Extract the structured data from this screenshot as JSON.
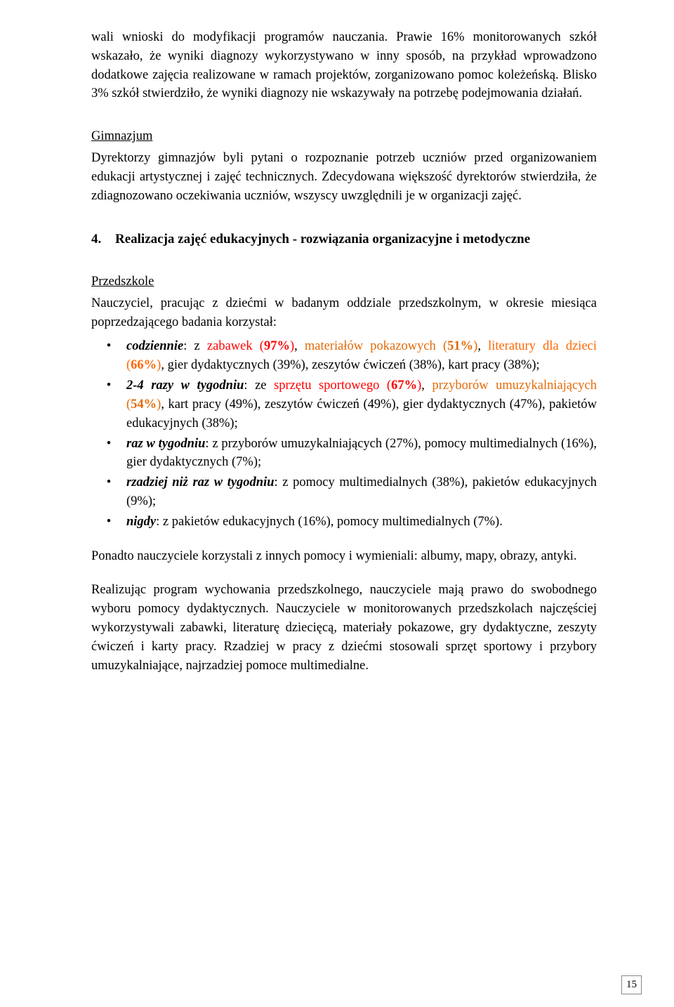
{
  "colors": {
    "text": "#000000",
    "background": "#ffffff",
    "highlight_primary": "#ff0100",
    "highlight_secondary": "#e36b08",
    "highlight_tertiary": "#ff6700",
    "pagenum_border": "#888888"
  },
  "typography": {
    "body_font": "Georgia, 'Times New Roman', serif",
    "body_size_pt": 14,
    "heading_size_pt": 14.5,
    "line_height": 1.45,
    "alignment": "justify"
  },
  "intro_para": "wali wnioski do modyfikacji programów nauczania. Prawie 16% monitorowanych szkół wskazało, że wyniki diagnozy wykorzystywano w inny sposób, na przykład wprowadzono dodatkowe zajęcia realizowane w ramach projektów, zorganizowano pomoc koleżeńską. Blisko 3% szkół stwierdziło, że wyniki diagnozy nie wskazywały na potrzebę podejmowania działań.",
  "gimn": {
    "heading": "Gimnazjum",
    "para": "Dyrektorzy gimnazjów byli pytani o rozpoznanie potrzeb uczniów przed organizowaniem edukacji artystycznej i zajęć technicznych. Zdecydowana większość dyrektorów stwierdziła, że zdiagnozowano oczekiwania uczniów, wszyscy uwzględnili je w organizacji zajęć."
  },
  "section4": {
    "number": "4.",
    "title": "Realizacja zajęć edukacyjnych - rozwiązania organizacyjne i metodyczne"
  },
  "przedszkole": {
    "heading": "Przedszkole",
    "lead": "Nauczyciel, pracując z dziećmi w badanym oddziale przedszkolnym, w okresie miesiąca poprzedzającego badania korzystał:",
    "items": [
      {
        "label": "codziennie",
        "post_label": ": z ",
        "runs": [
          {
            "text": "zabawek (",
            "cls": "hl1"
          },
          {
            "text": "97%",
            "cls": "hl1 bold"
          },
          {
            "text": ")",
            "cls": "hl1"
          },
          {
            "text": ", "
          },
          {
            "text": "materiałów pokazowych (",
            "cls": "hl2"
          },
          {
            "text": "51%",
            "cls": "hl2 bold"
          },
          {
            "text": ")",
            "cls": "hl2"
          },
          {
            "text": ", "
          },
          {
            "text": "literatury dla dzieci (",
            "cls": "hl3"
          },
          {
            "text": "66%",
            "cls": "hl3 bold"
          },
          {
            "text": ")",
            "cls": "hl3"
          },
          {
            "text": ", gier dydaktycznych (39%), zeszytów ćwiczeń (38%), kart pracy (38%);"
          }
        ]
      },
      {
        "label": "2-4 razy w tygodniu",
        "post_label": ": ze ",
        "runs": [
          {
            "text": "sprzętu sportowego (",
            "cls": "hl1"
          },
          {
            "text": "67%",
            "cls": "hl1 bold"
          },
          {
            "text": ")",
            "cls": "hl1"
          },
          {
            "text": ", "
          },
          {
            "text": "przyborów umuzykalniających (",
            "cls": "hl2"
          },
          {
            "text": "54%",
            "cls": "hl2 bold"
          },
          {
            "text": ")",
            "cls": "hl2"
          },
          {
            "text": ", kart pracy (49%), zeszytów ćwiczeń (49%), gier dydaktycznych (47%), pakietów edukacyjnych (38%);"
          }
        ]
      },
      {
        "label": "raz w tygodniu",
        "post_label": ": ",
        "runs": [
          {
            "text": "z przyborów umuzykalniających (27%), pomocy multimedialnych (16%), gier dydaktycznych (7%);"
          }
        ]
      },
      {
        "label": "rzadziej niż raz w tygodniu",
        "post_label": ": ",
        "runs": [
          {
            "text": "z pomocy multimedialnych (38%), pakietów edukacyjnych (9%);"
          }
        ]
      },
      {
        "label": "nigdy",
        "post_label": ": ",
        "runs": [
          {
            "text": "z pakietów edukacyjnych (16%), pomocy multimedialnych (7%)."
          }
        ]
      }
    ],
    "after1": "Ponadto nauczyciele korzystali z innych pomocy i wymieniali: albumy, mapy, obrazy, antyki.",
    "after2": "Realizując program wychowania przedszkolnego, nauczyciele mają prawo do swobodnego wyboru pomocy dydaktycznych. Nauczyciele w monitorowanych przedszkolach najczęściej wykorzystywali zabawki, literaturę dziecięcą, materiały pokazowe, gry dydaktyczne, zeszyty ćwiczeń i karty pracy. Rzadziej w pracy z dziećmi stosowali sprzęt sportowy i przybory umuzykalniające, najrzadziej pomoce multimedialne."
  },
  "page_number": "15",
  "bullet_glyph": "•"
}
